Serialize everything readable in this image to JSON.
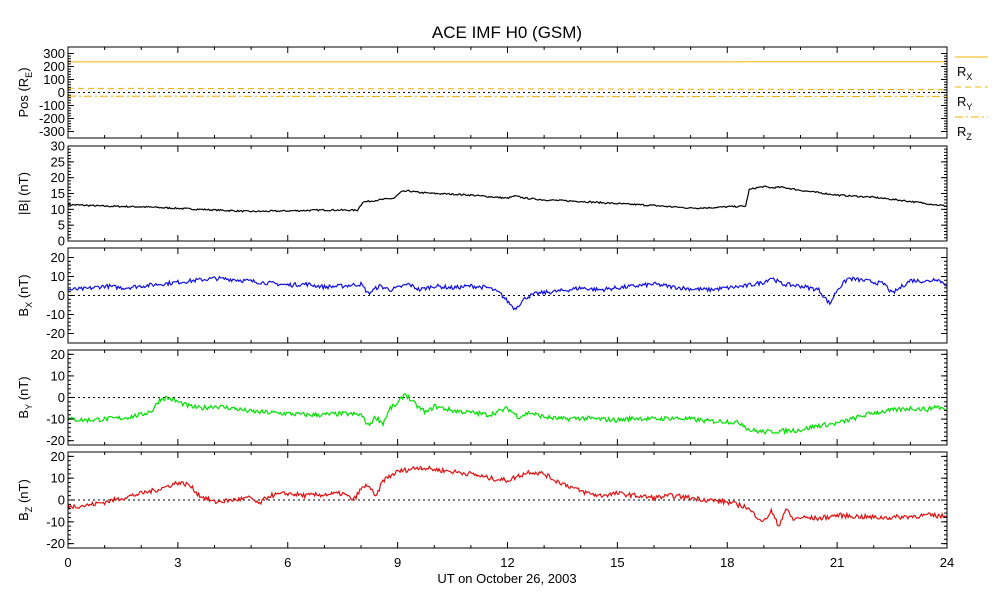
{
  "chart_data": {
    "type": "line",
    "title": "ACE IMF H0 (GSM)",
    "xlabel": "UT on October 26, 2003",
    "xlim": [
      0,
      24
    ],
    "xticks": [
      "0",
      "3",
      "6",
      "9",
      "12",
      "15",
      "18",
      "21",
      "24"
    ],
    "panels": [
      {
        "id": "pos",
        "ylabel": {
          "main": "Pos (R",
          "sub": "E",
          "end": ")"
        },
        "ylim": [
          -350,
          350
        ],
        "yticks": [
          "300",
          "200",
          "100",
          "0",
          "-100",
          "-200",
          "-300"
        ],
        "ytick_values": [
          300,
          200,
          100,
          0,
          -100,
          -200,
          -300
        ],
        "zero_line": true,
        "legend": [
          {
            "main": "R",
            "sub": "X"
          },
          {
            "main": "R",
            "sub": "Y"
          },
          {
            "main": "R",
            "sub": "Z"
          }
        ],
        "series": [
          {
            "legend": "Rx",
            "color": "#f0b000",
            "dash": "solid",
            "x": [
              0,
              24
            ],
            "y": [
              235,
              236
            ]
          },
          {
            "legend": "Ry",
            "color": "#f0b000",
            "dash": "dashed",
            "x": [
              0,
              6,
              12,
              18,
              24
            ],
            "y": [
              32,
              30,
              28,
              25,
              22
            ]
          },
          {
            "legend": "Rz",
            "color": "#f0b000",
            "dash": "dashdot",
            "x": [
              0,
              6,
              12,
              18,
              24
            ],
            "y": [
              -28,
              -30,
              -32,
              -31,
              -30
            ]
          }
        ]
      },
      {
        "id": "bmag",
        "ylabel": {
          "main": "|B| (nT)",
          "sub": "",
          "end": ""
        },
        "ylim": [
          0,
          30
        ],
        "yticks": [
          "30",
          "25",
          "20",
          "15",
          "10",
          "5",
          "0"
        ],
        "ytick_values": [
          30,
          25,
          20,
          15,
          10,
          5,
          0
        ],
        "zero_line": false,
        "series": [
          {
            "name": "|B|",
            "color": "#000000",
            "dash": "solid",
            "x": [
              0,
              1,
              2,
              3,
              4,
              5,
              6,
              7,
              7.9,
              8.05,
              8.2,
              8.5,
              8.9,
              9.1,
              9.3,
              9.6,
              10,
              10.5,
              11,
              11.5,
              12,
              12.2,
              12.5,
              13,
              14,
              15,
              16,
              17,
              17.5,
              18,
              18.5,
              18.6,
              18.8,
              19,
              19.2,
              19.5,
              20,
              21,
              22,
              23,
              24
            ],
            "y": [
              11.5,
              11,
              10.8,
              10.3,
              9.8,
              9.3,
              9.5,
              9.8,
              9.7,
              12.3,
              12.5,
              13,
              13.5,
              15.5,
              15.8,
              15.3,
              15,
              14.8,
              14.5,
              14,
              13.5,
              14.2,
              13.5,
              13,
              12.5,
              11.8,
              11.2,
              10.4,
              10.5,
              10.8,
              11,
              16.2,
              16.8,
              17.2,
              16.8,
              17,
              16,
              14.5,
              13.8,
              12.5,
              11
            ]
          }
        ]
      },
      {
        "id": "bx",
        "ylabel": {
          "main": "B",
          "sub": "X",
          "end": " (nT)"
        },
        "ylim": [
          -25,
          25
        ],
        "yticks": [
          "20",
          "10",
          "0",
          "-10",
          "-20"
        ],
        "ytick_values": [
          20,
          10,
          0,
          -10,
          -20
        ],
        "zero_line": true,
        "series": [
          {
            "name": "Bx",
            "color": "#1010e0",
            "dash": "solid",
            "x": [
              0,
              0.5,
              1,
              1.5,
              2,
              2.5,
              3,
              3.5,
              4,
              4.5,
              5,
              5.5,
              6,
              6.5,
              7,
              7.5,
              8,
              8.2,
              8.5,
              8.8,
              9,
              9.3,
              9.6,
              10,
              10.5,
              11,
              11.5,
              11.8,
              12,
              12.2,
              12.5,
              12.8,
              13,
              13.5,
              14,
              14.5,
              15,
              15.5,
              16,
              16.5,
              17,
              17.5,
              18,
              18.5,
              19,
              19.2,
              19.5,
              20,
              20.5,
              20.7,
              20.8,
              21,
              21.3,
              21.7,
              22,
              22.3,
              22.5,
              23,
              23.5,
              23.7,
              24
            ],
            "y": [
              3,
              3.5,
              5,
              4,
              5,
              6,
              7,
              8,
              9,
              8.5,
              7.5,
              6.5,
              5.5,
              6,
              4.5,
              5,
              6,
              1,
              5,
              3,
              4,
              6,
              3,
              5,
              4,
              5,
              4,
              1,
              -3,
              -7,
              -1,
              1,
              1.5,
              2.5,
              4,
              3,
              4,
              5,
              6,
              4.5,
              3.5,
              3,
              4,
              5,
              7,
              9.5,
              6,
              5,
              3,
              -2,
              -4.5,
              3,
              9,
              8,
              7,
              6,
              1,
              8,
              7.5,
              9,
              5.5
            ]
          }
        ]
      },
      {
        "id": "by",
        "ylabel": {
          "main": "B",
          "sub": "Y",
          "end": " (nT)"
        },
        "ylim": [
          -22,
          22
        ],
        "yticks": [
          "20",
          "10",
          "0",
          "-10",
          "-20"
        ],
        "ytick_values": [
          20,
          10,
          0,
          -10,
          -20
        ],
        "zero_line": true,
        "series": [
          {
            "name": "By",
            "color": "#00e000",
            "dash": "solid",
            "x": [
              0,
              0.5,
              1,
              1.5,
              2,
              2.3,
              2.5,
              2.7,
              3,
              3.3,
              3.6,
              4,
              4.5,
              5,
              5.5,
              6,
              6.5,
              7,
              7.5,
              8,
              8.2,
              8.4,
              8.6,
              8.8,
              9,
              9.2,
              9.4,
              9.6,
              9.8,
              10,
              10.5,
              11,
              11.5,
              12,
              12.3,
              12.6,
              13,
              13.5,
              14,
              14.5,
              15,
              15.5,
              16,
              16.5,
              17,
              17.5,
              18,
              18.4,
              18.6,
              19,
              19.5,
              20,
              20.5,
              21,
              21.5,
              22,
              22.5,
              23,
              23.5,
              23.7,
              24
            ],
            "y": [
              -10,
              -10.5,
              -10,
              -9.5,
              -8,
              -6,
              -1,
              0,
              -2,
              -4,
              -5,
              -4,
              -5,
              -6.5,
              -7,
              -7.5,
              -8,
              -8,
              -7.5,
              -8,
              -13,
              -9,
              -12,
              -5,
              -3,
              2,
              -2,
              -5,
              -7,
              -4,
              -6,
              -7,
              -8,
              -5,
              -9,
              -7,
              -9,
              -10,
              -9.5,
              -10,
              -10.5,
              -9.5,
              -10,
              -9.5,
              -10,
              -11,
              -11,
              -12,
              -15,
              -16,
              -15.5,
              -15,
              -13,
              -12,
              -9.5,
              -7,
              -6,
              -5,
              -5.5,
              -4,
              -6
            ]
          }
        ]
      },
      {
        "id": "bz",
        "ylabel": {
          "main": "B",
          "sub": "Z",
          "end": " (nT)"
        },
        "ylim": [
          -22,
          22
        ],
        "yticks": [
          "20",
          "10",
          "0",
          "-10",
          "-20"
        ],
        "ytick_values": [
          20,
          10,
          0,
          -10,
          -20
        ],
        "zero_line": true,
        "series": [
          {
            "name": "Bz",
            "color": "#e01010",
            "dash": "solid",
            "x": [
              0,
              0.5,
              1,
              1.5,
              2,
              2.5,
              3,
              3.3,
              3.6,
              4,
              4.5,
              5,
              5.2,
              5.5,
              6,
              6.5,
              7,
              7.5,
              7.8,
              8,
              8.2,
              8.4,
              8.6,
              8.8,
              9,
              9.3,
              9.6,
              10,
              10.5,
              11,
              11.5,
              12,
              12.3,
              12.6,
              13,
              13.3,
              13.6,
              14,
              14.5,
              15,
              15.5,
              16,
              16.5,
              17,
              17.5,
              18,
              18.5,
              18.7,
              19,
              19.2,
              19.4,
              19.6,
              19.8,
              20,
              20.5,
              21,
              21.5,
              22,
              22.5,
              23,
              23.5,
              24
            ],
            "y": [
              -3,
              -2.5,
              -1,
              1,
              3,
              5,
              8,
              7,
              2,
              -1,
              0,
              1,
              -2,
              2,
              3,
              2,
              2.5,
              3,
              0,
              5,
              7,
              1,
              9,
              11,
              13,
              14,
              15,
              14,
              13,
              12,
              10,
              9,
              11,
              13,
              12,
              9,
              7,
              4,
              2,
              3,
              2,
              1,
              2,
              1,
              0,
              -1,
              -3,
              -6,
              -10,
              -5,
              -12,
              -4,
              -9,
              -8,
              -8.5,
              -7,
              -7.5,
              -8,
              -8,
              -7.5,
              -7,
              -7.5
            ]
          }
        ]
      }
    ]
  }
}
